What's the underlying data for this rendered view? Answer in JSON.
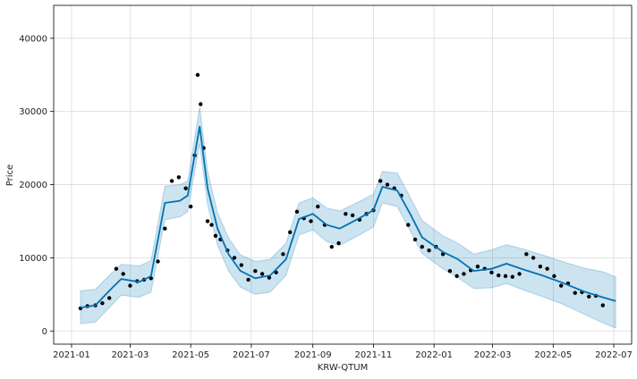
{
  "chart_data": {
    "type": "line",
    "xlabel": "KRW-QTUM",
    "ylabel": "Price",
    "x_ticks": [
      "2021-01",
      "2021-03",
      "2021-05",
      "2021-07",
      "2021-09",
      "2021-11",
      "2022-01",
      "2022-03",
      "2022-05",
      "2022-07"
    ],
    "y_ticks": [
      0,
      10000,
      20000,
      30000,
      40000
    ],
    "xlim": [
      "2020-12-14",
      "2022-07-19"
    ],
    "ylim": [
      -1800,
      44500
    ],
    "grid": true,
    "colors": {
      "forecast": "#0072B2",
      "band": "#0072B2",
      "observed": "#000000"
    },
    "series": [
      {
        "role": "forecast",
        "x": [
          "2021-01-10",
          "2021-01-25",
          "2021-02-08",
          "2021-02-20",
          "2021-03-10",
          "2021-03-22",
          "2021-04-05",
          "2021-04-20",
          "2021-04-28",
          "2021-05-05",
          "2021-05-10",
          "2021-05-18",
          "2021-05-28",
          "2021-06-08",
          "2021-06-20",
          "2021-07-05",
          "2021-07-20",
          "2021-08-05",
          "2021-08-18",
          "2021-09-01",
          "2021-09-15",
          "2021-09-28",
          "2021-10-15",
          "2021-11-01",
          "2021-11-10",
          "2021-11-25",
          "2021-12-08",
          "2021-12-20",
          "2022-01-10",
          "2022-01-25",
          "2022-02-10",
          "2022-02-28",
          "2022-03-15",
          "2022-04-01",
          "2022-04-20",
          "2022-05-10",
          "2022-06-01",
          "2022-06-20",
          "2022-07-03"
        ],
        "y": [
          3200,
          3500,
          5500,
          7100,
          6700,
          7500,
          17500,
          17800,
          18500,
          24000,
          28000,
          19500,
          14000,
          10500,
          8200,
          7200,
          7600,
          9800,
          15300,
          16000,
          14500,
          14000,
          15200,
          16500,
          19700,
          19200,
          16000,
          12800,
          10800,
          9800,
          8200,
          8500,
          9200,
          8400,
          7600,
          6600,
          5400,
          4600,
          4100
        ]
      },
      {
        "role": "uncertainty-upper",
        "x": [
          "2021-01-10",
          "2021-01-25",
          "2021-02-08",
          "2021-02-20",
          "2021-03-10",
          "2021-03-22",
          "2021-04-05",
          "2021-04-20",
          "2021-04-28",
          "2021-05-05",
          "2021-05-10",
          "2021-05-18",
          "2021-05-28",
          "2021-06-08",
          "2021-06-20",
          "2021-07-05",
          "2021-07-20",
          "2021-08-05",
          "2021-08-18",
          "2021-09-01",
          "2021-09-15",
          "2021-09-28",
          "2021-10-15",
          "2021-11-01",
          "2021-11-10",
          "2021-11-25",
          "2021-12-08",
          "2021-12-20",
          "2022-01-10",
          "2022-01-25",
          "2022-02-10",
          "2022-02-28",
          "2022-03-15",
          "2022-04-01",
          "2022-04-20",
          "2022-05-10",
          "2022-06-01",
          "2022-06-20",
          "2022-07-03"
        ],
        "y": [
          5500,
          5700,
          7600,
          9100,
          8900,
          9600,
          19800,
          20000,
          20500,
          26400,
          30600,
          21800,
          16200,
          12700,
          10400,
          9500,
          9800,
          12000,
          17500,
          18200,
          16800,
          16400,
          17500,
          18700,
          21800,
          21600,
          18300,
          15100,
          13000,
          12000,
          10500,
          11100,
          11800,
          11200,
          10400,
          9500,
          8600,
          8100,
          7400
        ]
      },
      {
        "role": "uncertainty-lower",
        "x": [
          "2021-01-10",
          "2021-01-25",
          "2021-02-08",
          "2021-02-20",
          "2021-03-10",
          "2021-03-22",
          "2021-04-05",
          "2021-04-20",
          "2021-04-28",
          "2021-05-05",
          "2021-05-10",
          "2021-05-18",
          "2021-05-28",
          "2021-06-08",
          "2021-06-20",
          "2021-07-05",
          "2021-07-20",
          "2021-08-05",
          "2021-08-18",
          "2021-09-01",
          "2021-09-15",
          "2021-09-28",
          "2021-10-15",
          "2021-11-01",
          "2021-11-10",
          "2021-11-25",
          "2021-12-08",
          "2021-12-20",
          "2022-01-10",
          "2022-01-25",
          "2022-02-10",
          "2022-02-28",
          "2022-03-15",
          "2022-04-01",
          "2022-04-20",
          "2022-05-10",
          "2022-06-01",
          "2022-06-20",
          "2022-07-03"
        ],
        "y": [
          1000,
          1200,
          3200,
          4900,
          4600,
          5300,
          15200,
          15600,
          16300,
          21800,
          25600,
          17300,
          11700,
          8200,
          6000,
          5000,
          5300,
          7600,
          13100,
          13800,
          12200,
          11700,
          12900,
          14200,
          17500,
          17000,
          13700,
          10600,
          8500,
          7300,
          5800,
          5900,
          6500,
          5600,
          4700,
          3700,
          2300,
          1100,
          400
        ]
      },
      {
        "role": "observed",
        "x": [
          "2021-01-10",
          "2021-01-17",
          "2021-01-25",
          "2021-02-01",
          "2021-02-08",
          "2021-02-15",
          "2021-02-22",
          "2021-03-01",
          "2021-03-08",
          "2021-03-15",
          "2021-03-22",
          "2021-03-29",
          "2021-04-05",
          "2021-04-12",
          "2021-04-19",
          "2021-04-26",
          "2021-05-01",
          "2021-05-05",
          "2021-05-08",
          "2021-05-11",
          "2021-05-14",
          "2021-05-18",
          "2021-05-22",
          "2021-05-26",
          "2021-05-31",
          "2021-06-07",
          "2021-06-14",
          "2021-06-21",
          "2021-06-28",
          "2021-07-05",
          "2021-07-12",
          "2021-07-19",
          "2021-07-26",
          "2021-08-02",
          "2021-08-09",
          "2021-08-16",
          "2021-08-23",
          "2021-08-30",
          "2021-09-06",
          "2021-09-13",
          "2021-09-20",
          "2021-09-27",
          "2021-10-04",
          "2021-10-11",
          "2021-10-18",
          "2021-10-25",
          "2021-11-01",
          "2021-11-08",
          "2021-11-15",
          "2021-11-22",
          "2021-11-29",
          "2021-12-06",
          "2021-12-13",
          "2021-12-20",
          "2021-12-27",
          "2022-01-03",
          "2022-01-10",
          "2022-01-17",
          "2022-01-24",
          "2022-01-31",
          "2022-02-07",
          "2022-02-14",
          "2022-02-21",
          "2022-02-28",
          "2022-03-07",
          "2022-03-14",
          "2022-03-21",
          "2022-03-28",
          "2022-04-04",
          "2022-04-11",
          "2022-04-18",
          "2022-04-25",
          "2022-05-02",
          "2022-05-09",
          "2022-05-16",
          "2022-05-23",
          "2022-05-30",
          "2022-06-06",
          "2022-06-13",
          "2022-06-20"
        ],
        "y": [
          3100,
          3400,
          3500,
          3800,
          4500,
          8500,
          7800,
          6200,
          6800,
          7000,
          7200,
          9500,
          14000,
          20500,
          21000,
          19500,
          17000,
          24000,
          35000,
          31000,
          25000,
          15000,
          14500,
          13000,
          12500,
          11000,
          10000,
          9000,
          7000,
          8200,
          7800,
          7300,
          8000,
          10500,
          13500,
          16300,
          15400,
          15000,
          17000,
          14500,
          11500,
          12000,
          16000,
          15800,
          15200,
          16000,
          16500,
          20500,
          20000,
          19500,
          18500,
          14500,
          12500,
          11500,
          11000,
          11500,
          10500,
          8200,
          7500,
          7800,
          8300,
          8800,
          8500,
          8000,
          7600,
          7500,
          7400,
          7800,
          10500,
          10000,
          8800,
          8500,
          7500,
          6200,
          6500,
          5200,
          5300,
          4700,
          4800,
          3500
        ]
      }
    ]
  }
}
